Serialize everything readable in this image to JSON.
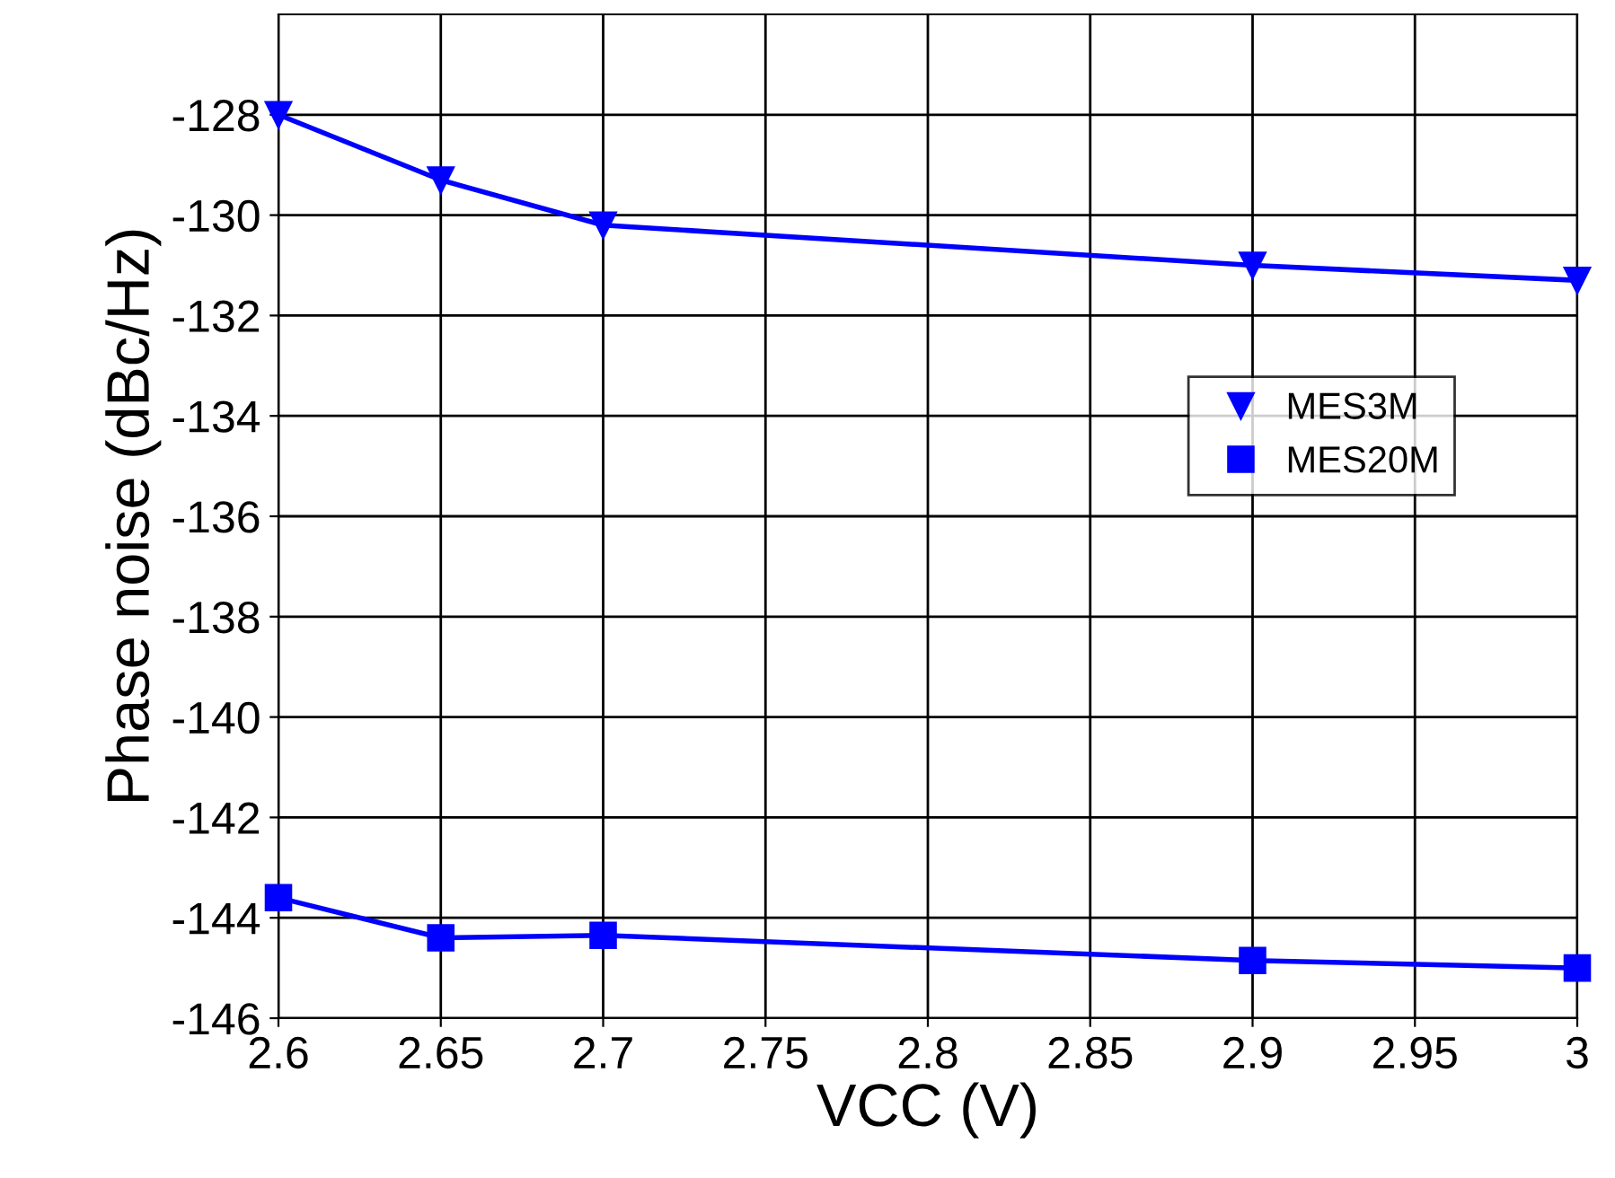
{
  "chart_data": {
    "type": "line",
    "xlabel": "VCC (V)",
    "ylabel": "Phase noise (dBc/Hz)",
    "x": [
      2.6,
      2.65,
      2.7,
      2.9,
      3.0
    ],
    "series": [
      {
        "name": "MES3M",
        "color": "#0000ff",
        "marker": "triangle",
        "values": [
          -128.0,
          -129.3,
          -130.2,
          -131.0,
          -131.3
        ]
      },
      {
        "name": "MES20M",
        "color": "#0000ff",
        "marker": "square",
        "values": [
          -143.6,
          -144.4,
          -144.35,
          -144.85,
          -145.0
        ]
      }
    ],
    "xlim": [
      2.6,
      3.0
    ],
    "xticks": [
      2.6,
      2.65,
      2.7,
      2.75,
      2.8,
      2.85,
      2.9,
      2.95,
      3
    ],
    "ylim": [
      -146,
      -126
    ],
    "yticks": [
      -146,
      -144,
      -142,
      -140,
      -138,
      -136,
      -134,
      -132,
      -130,
      -128
    ],
    "grid": true,
    "legend": "right",
    "line_style": "solid"
  }
}
